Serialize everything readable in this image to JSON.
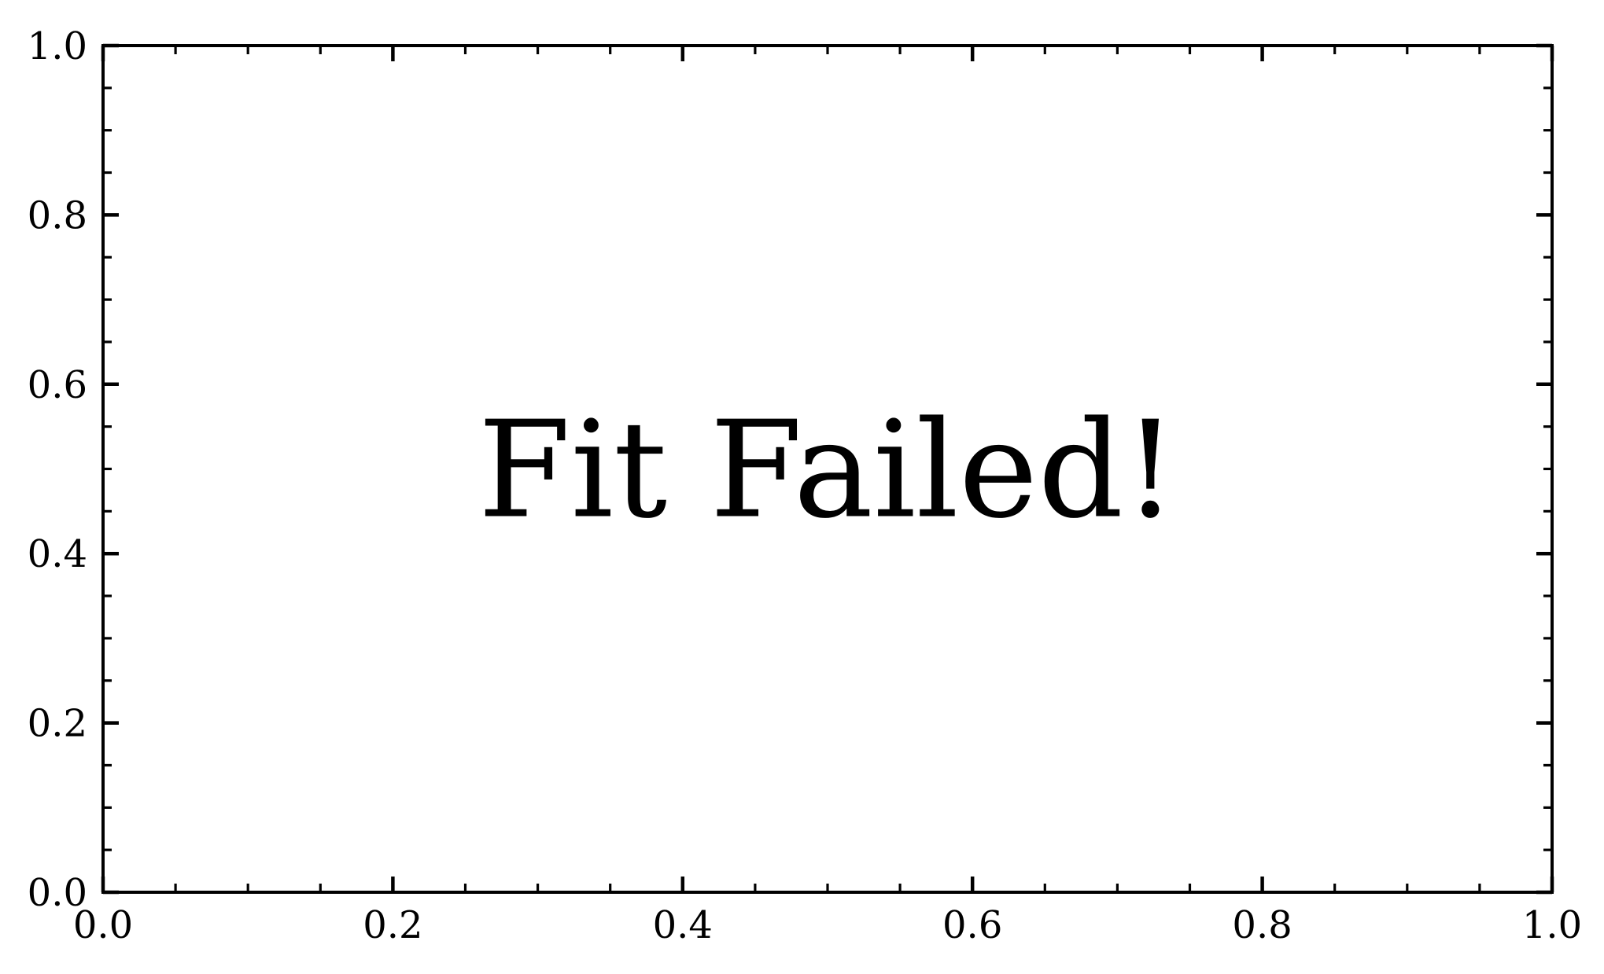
{
  "chart_data": {
    "type": "scatter",
    "title": "",
    "xlabel": "",
    "ylabel": "",
    "xlim": [
      0.0,
      1.0
    ],
    "ylim": [
      0.0,
      1.0
    ],
    "x_ticks": [
      "0.0",
      "0.2",
      "0.4",
      "0.6",
      "0.8",
      "1.0"
    ],
    "y_ticks": [
      "0.0",
      "0.2",
      "0.4",
      "0.6",
      "0.8",
      "1.0"
    ],
    "series": [],
    "grid": false,
    "legend": false,
    "annotation": {
      "text": "Fit Failed!",
      "x": 0.5,
      "y": 0.5
    },
    "colors": {
      "axis": "#000000",
      "background": "#ffffff"
    }
  }
}
